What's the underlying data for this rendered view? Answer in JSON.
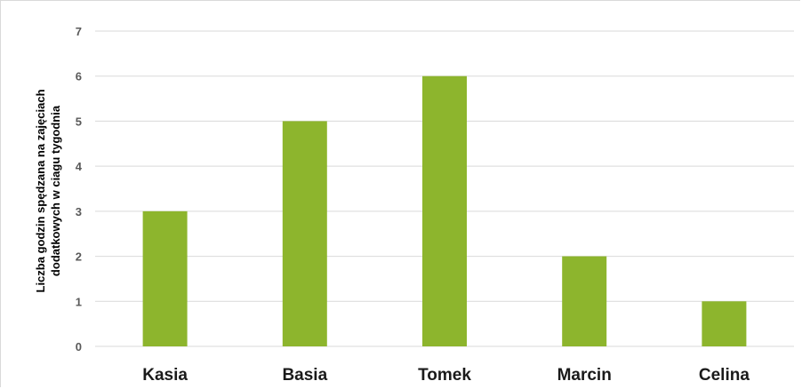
{
  "chart_data": {
    "type": "bar",
    "title": "",
    "xlabel": "",
    "ylabel_lines": [
      "Liczba godzin spędzana na zajęciach",
      "dodatkowych w ciagu tygodnia"
    ],
    "categories": [
      "Kasia",
      "Basia",
      "Tomek",
      "Marcin",
      "Celina"
    ],
    "values": [
      3,
      5,
      6,
      2,
      1
    ],
    "ylim": [
      0,
      7
    ],
    "yticks": [
      "0",
      "1",
      "2",
      "3",
      "4",
      "5",
      "6",
      "7"
    ],
    "grid": true,
    "legend": "none",
    "colors": {
      "bar": "#8db52d",
      "grid": "#d9d9d9",
      "axis": "#d9d9d9"
    }
  }
}
